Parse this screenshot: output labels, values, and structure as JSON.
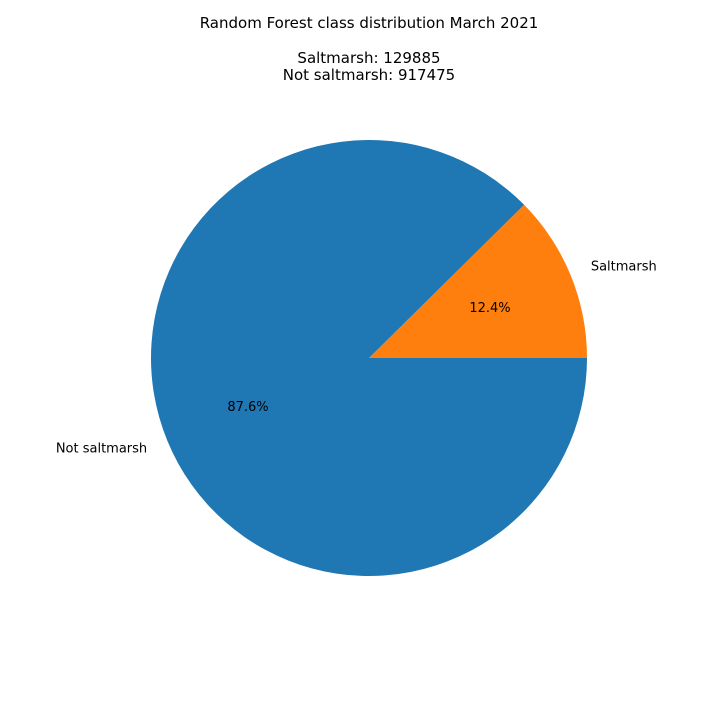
{
  "chart_data": {
    "type": "pie",
    "title": "Random Forest class distribution March 2021",
    "subtitle_lines": [
      "Saltmarsh: 129885",
      "Not saltmarsh: 917475"
    ],
    "slices": [
      {
        "label": "Saltmarsh",
        "value": 129885,
        "percent_label": "12.4%",
        "color": "#ff7f0e"
      },
      {
        "label": "Not saltmarsh",
        "value": 917475,
        "percent_label": "87.6%",
        "color": "#1f77b4"
      }
    ],
    "start_angle_deg": 0,
    "direction": "counterclockwise",
    "legend": "none"
  }
}
